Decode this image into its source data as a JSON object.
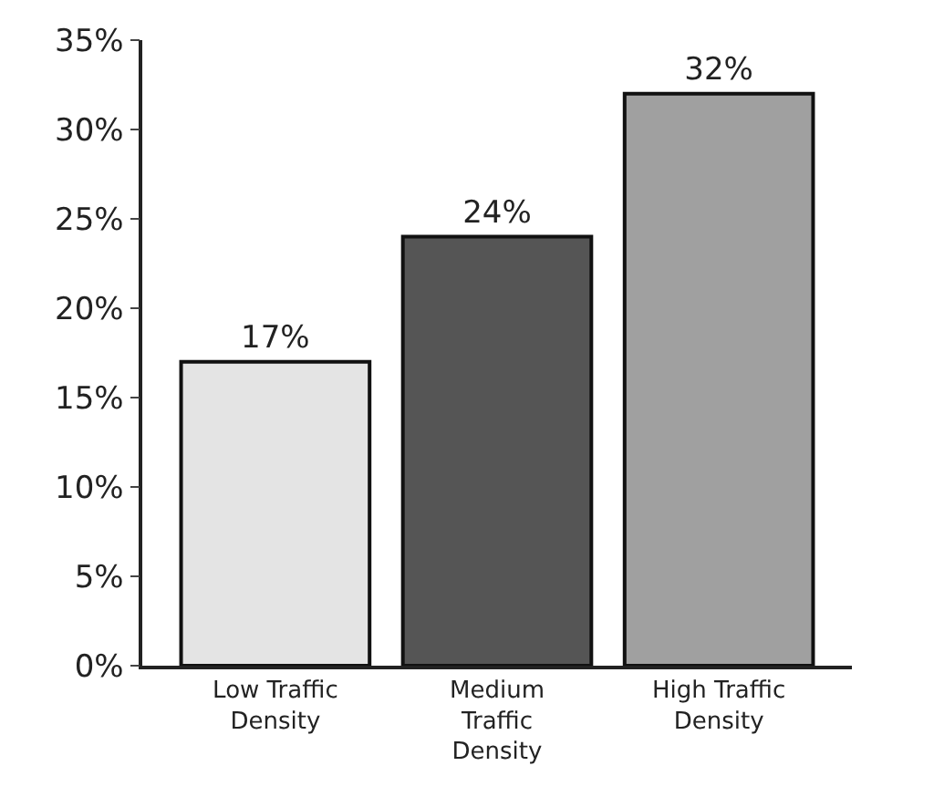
{
  "chart_data": {
    "type": "bar",
    "categories": [
      "Low Traffic Density",
      "Medium Traffic Density",
      "High Traffic Density"
    ],
    "values": [
      17,
      24,
      32
    ],
    "colors": [
      "#e4e4e4",
      "#555555",
      "#a0a0a0"
    ],
    "value_labels": [
      "17%",
      "24%",
      "32%"
    ],
    "ylim": [
      0,
      35
    ],
    "yticks": [
      {
        "value": 0,
        "label": "0%"
      },
      {
        "value": 5,
        "label": "5%"
      },
      {
        "value": 10,
        "label": "10%"
      },
      {
        "value": 15,
        "label": "15%"
      },
      {
        "value": 20,
        "label": "20%"
      },
      {
        "value": 25,
        "label": "25%"
      },
      {
        "value": 30,
        "label": "30%"
      },
      {
        "value": 35,
        "label": "35%"
      }
    ],
    "grid": false
  }
}
